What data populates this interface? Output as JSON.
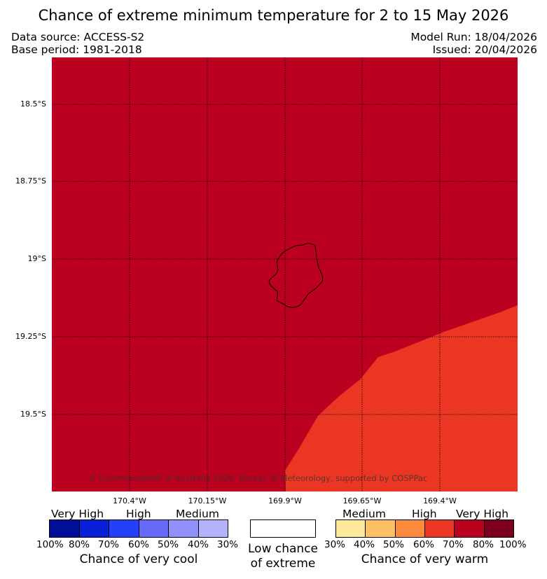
{
  "header": {
    "title": "Chance of extreme minimum temperature for 2 to 15 May 2026",
    "data_source": "Data source: ACCESS-S2",
    "base_period": "Base period: 1981-2018",
    "model_run": "Model Run: 18/04/2026",
    "issued": "Issued: 20/04/2026"
  },
  "map": {
    "y_ticks": [
      "18.5°S",
      "18.75°S",
      "19°S",
      "19.25°S",
      "19.5°S"
    ],
    "x_ticks": [
      "170.4°W",
      "170.15°W",
      "169.9°W",
      "169.65°W",
      "169.4°W"
    ],
    "background_color": "#bb0020",
    "region_color": "#ec3624",
    "gridline_color": "#000000",
    "copyright": "© Commonwealth of Australia 2026, Bureau of Meteorology, supported by COSPPac",
    "regions": [
      {
        "category": "70-80% very warm",
        "color": "#bb0020"
      },
      {
        "category": "60-70% very warm",
        "color": "#ec3624"
      }
    ]
  },
  "legend": {
    "cool": {
      "headings": [
        "Very High",
        "High",
        "Medium"
      ],
      "percentages": [
        "100%",
        "80%",
        "70%",
        "60%",
        "50%",
        "40%",
        "30%"
      ],
      "colors": [
        "#000c9a",
        "#0820d8",
        "#2440fa",
        "#6868fa",
        "#9090fa",
        "#b4b4fc"
      ],
      "caption": "Chance of very cool"
    },
    "neutral": {
      "color": "#ffffff",
      "caption_line1": "Low chance",
      "caption_line2": "of extreme"
    },
    "warm": {
      "headings": [
        "Medium",
        "High",
        "Very High"
      ],
      "percentages": [
        "30%",
        "40%",
        "50%",
        "60%",
        "70%",
        "80%",
        "100%"
      ],
      "colors": [
        "#fee89a",
        "#fec064",
        "#fc8a3c",
        "#ec3624",
        "#bb0020",
        "#7e0020"
      ],
      "caption": "Chance of very warm"
    }
  }
}
